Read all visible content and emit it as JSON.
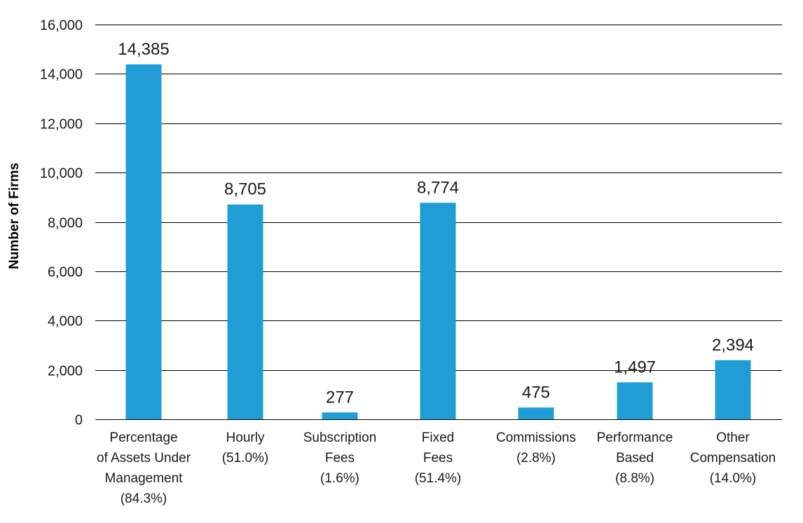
{
  "chart_data": {
    "type": "bar",
    "categories": [
      [
        "Percentage",
        "of Assets Under",
        "Management",
        "(84.3%)"
      ],
      [
        "Hourly",
        "(51.0%)"
      ],
      [
        "Subscription",
        "Fees",
        "(1.6%)"
      ],
      [
        "Fixed",
        "Fees",
        "(51.4%)"
      ],
      [
        "Commissions",
        "(2.8%)"
      ],
      [
        "Performance",
        "Based",
        "(8.8%)"
      ],
      [
        "Other",
        "Compensation",
        "(14.0%)"
      ]
    ],
    "values": [
      14385,
      8705,
      277,
      8774,
      475,
      1497,
      2394
    ],
    "value_labels": [
      "14,385",
      "8,705",
      "277",
      "8,774",
      "475",
      "1,497",
      "2,394"
    ],
    "ylabel": "Number of Firms",
    "xlabel": "",
    "ylim": [
      0,
      16000
    ],
    "yticks": [
      0,
      2000,
      4000,
      6000,
      8000,
      10000,
      12000,
      14000,
      16000
    ],
    "ytick_labels": [
      "0",
      "2,000",
      "4,000",
      "6,000",
      "8,000",
      "10,000",
      "12,000",
      "14,000",
      "16,000"
    ],
    "grid": true,
    "bar_color": "#209dd7",
    "gridline_color": "#000000"
  }
}
